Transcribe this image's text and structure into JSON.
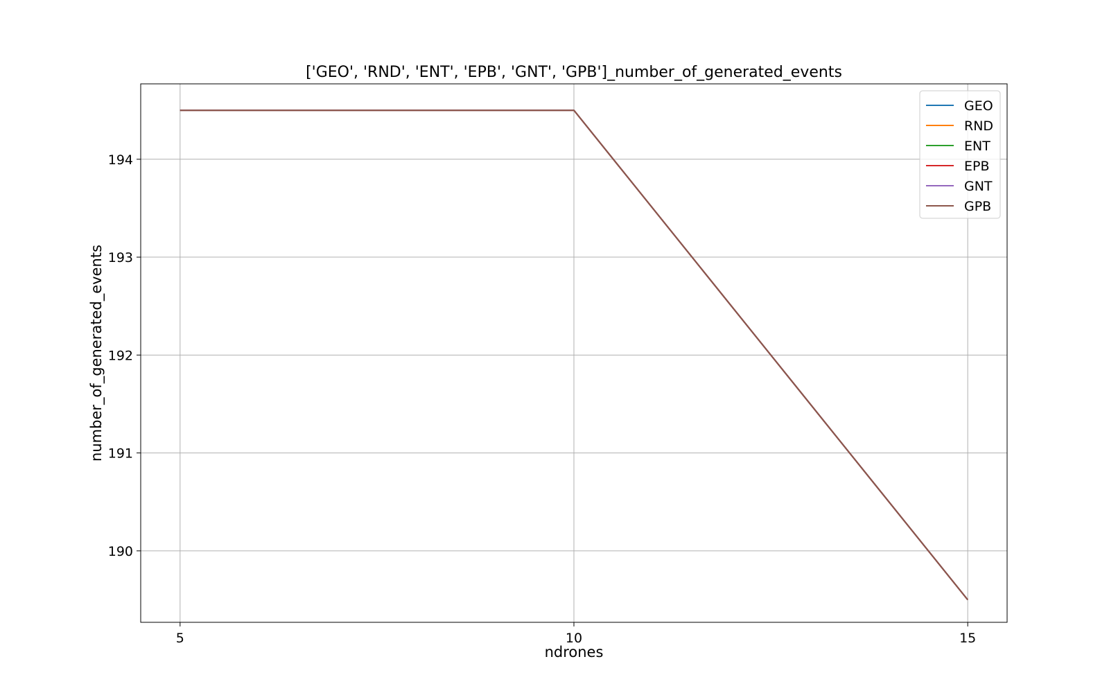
{
  "chart_data": {
    "type": "line",
    "title": "['GEO', 'RND', 'ENT', 'EPB', 'GNT', 'GPB']_number_of_generated_events",
    "xlabel": "ndrones",
    "ylabel": "number_of_generated_events",
    "x": [
      5,
      10,
      15
    ],
    "xticks": [
      5,
      10,
      15
    ],
    "yticks": [
      190,
      191,
      192,
      193,
      194
    ],
    "xlim": [
      4.5,
      15.5
    ],
    "ylim": [
      189.27,
      194.77
    ],
    "grid": true,
    "legend_position": "top-right",
    "series": [
      {
        "name": "GEO",
        "color": "#1f77b4",
        "values": [
          194.5,
          194.5,
          189.5
        ]
      },
      {
        "name": "RND",
        "color": "#ff7f0e",
        "values": [
          194.5,
          194.5,
          189.5
        ]
      },
      {
        "name": "ENT",
        "color": "#2ca02c",
        "values": [
          194.5,
          194.5,
          189.5
        ]
      },
      {
        "name": "EPB",
        "color": "#d62728",
        "values": [
          194.5,
          194.5,
          189.5
        ]
      },
      {
        "name": "GNT",
        "color": "#9467bd",
        "values": [
          194.5,
          194.5,
          189.5
        ]
      },
      {
        "name": "GPB",
        "color": "#8c564b",
        "values": [
          194.5,
          194.5,
          189.5
        ]
      }
    ]
  }
}
